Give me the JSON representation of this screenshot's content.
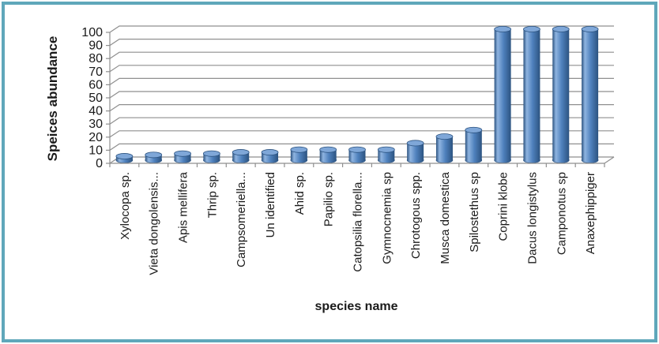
{
  "frame": {
    "border_color": "#5fa7ba",
    "background_color": "#ffffff"
  },
  "chart_data": {
    "type": "bar",
    "subtype": "3d-cylinder",
    "title": "",
    "xlabel": "species name",
    "ylabel": "Speices abundance",
    "ylim": [
      0,
      100
    ],
    "ytick_step": 10,
    "ytick_labels": [
      "0",
      "10",
      "20",
      "30",
      "40",
      "50",
      "60",
      "70",
      "80",
      "90",
      "100"
    ],
    "grid": true,
    "legend": "none",
    "categories": [
      "Xylocopa sp.",
      "Vieta dongolensis...",
      "Apis mellifera",
      "Thrip sp.",
      "Campsomeriella...",
      "Un identified",
      "Ahid sp.",
      "Papilio sp.",
      "Catopsilia florella...",
      "Gymnocnemia sp",
      "Chrotogous spp.",
      "Musca domestica",
      "Spilostethus sp",
      "Coprini klobe",
      "Dacus longistylus",
      "Camponotus sp",
      "Anaxephippiger"
    ],
    "values": [
      3,
      4,
      5,
      5,
      6,
      6,
      8,
      8,
      8,
      8,
      13,
      18,
      23,
      100,
      100,
      100,
      100
    ],
    "colors": {
      "bar_main": "#4f81bd",
      "bar_dark": "#2c5380",
      "bar_highlight": "#8fb4e0",
      "bar_top": "#7fa7d8",
      "gridline": "#8f8f8f",
      "axis": "#8f8f8f",
      "text": "#1a1a1a"
    }
  }
}
